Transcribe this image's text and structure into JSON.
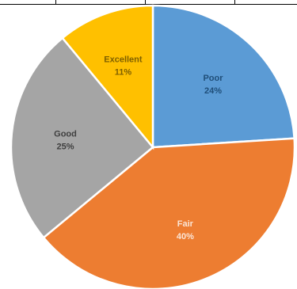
{
  "chart_data": {
    "type": "pie",
    "title": "",
    "slices": [
      {
        "name": "Poor",
        "value": 24,
        "label": "24%",
        "color": "#5B9BD5",
        "text_color": "#1F4E79"
      },
      {
        "name": "Fair",
        "value": 40,
        "label": "40%",
        "color": "#ED7D31",
        "text_color": "#FBE5D6"
      },
      {
        "name": "Good",
        "value": 25,
        "label": "25%",
        "color": "#A5A5A5",
        "text_color": "#404040"
      },
      {
        "name": "Excellent",
        "value": 11,
        "label": "11%",
        "color": "#FFC000",
        "text_color": "#7F6000"
      }
    ],
    "start_angle_deg": 0,
    "direction": "clockwise",
    "legend": "none",
    "slice_border_color": "#FFFFFF"
  }
}
